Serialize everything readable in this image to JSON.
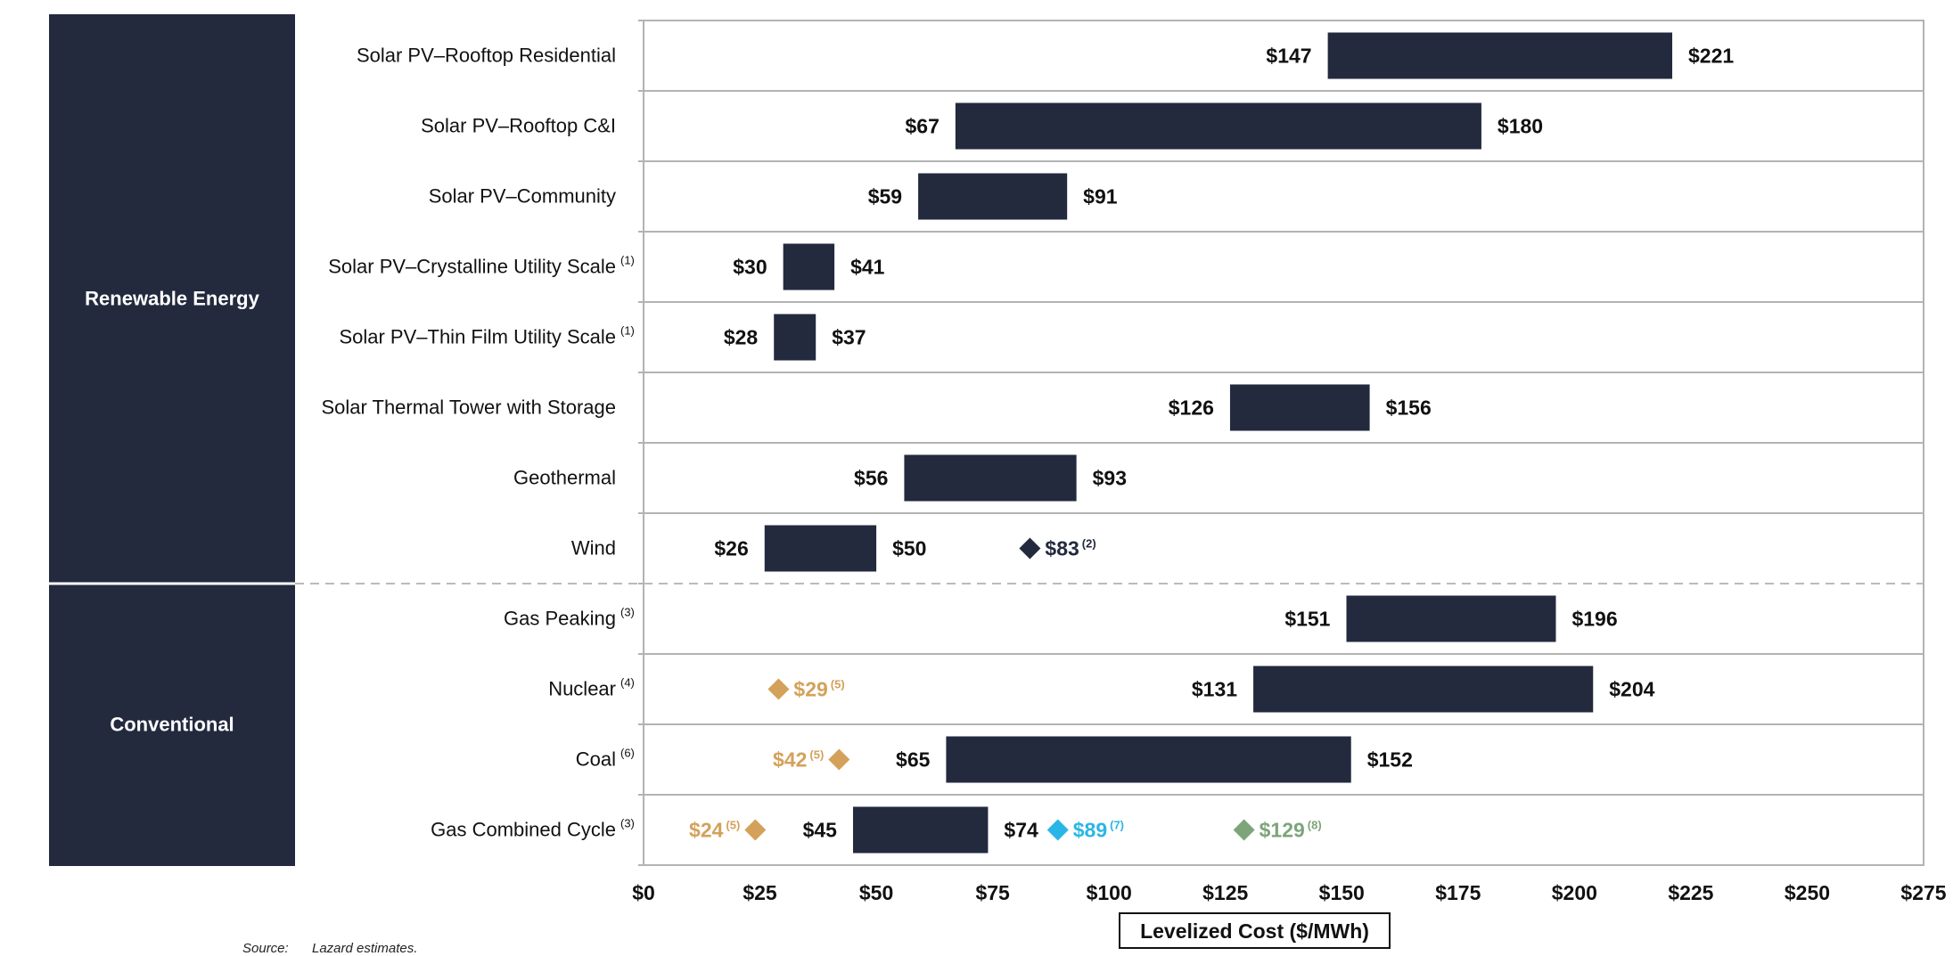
{
  "chart_data": {
    "type": "range-bar",
    "xlabel": "Levelized Cost ($/MWh)",
    "xlim": [
      0,
      275
    ],
    "x_ticks": [
      "$0",
      "$25",
      "$50",
      "$75",
      "$100",
      "$125",
      "$150",
      "$175",
      "$200",
      "$225",
      "$250",
      "$275"
    ],
    "groups": [
      {
        "name": "Renewable Energy",
        "first_row": 0,
        "last_row": 7
      },
      {
        "name": "Conventional",
        "first_row": 8,
        "last_row": 11
      }
    ],
    "rows": [
      {
        "label": "Solar PV–Rooftop Residential",
        "note": "",
        "low": 147,
        "high": 221,
        "low_label": "$147",
        "high_label": "$221",
        "markers": []
      },
      {
        "label": "Solar PV–Rooftop C&I",
        "note": "",
        "low": 67,
        "high": 180,
        "low_label": "$67",
        "high_label": "$180",
        "markers": []
      },
      {
        "label": "Solar PV–Community",
        "note": "",
        "low": 59,
        "high": 91,
        "low_label": "$59",
        "high_label": "$91",
        "markers": []
      },
      {
        "label": "Solar PV–Crystalline Utility Scale",
        "note": "(1)",
        "low": 30,
        "high": 41,
        "low_label": "$30",
        "high_label": "$41",
        "markers": []
      },
      {
        "label": "Solar PV–Thin Film Utility Scale",
        "note": "(1)",
        "low": 28,
        "high": 37,
        "low_label": "$28",
        "high_label": "$37",
        "markers": []
      },
      {
        "label": "Solar Thermal Tower with Storage",
        "note": "",
        "low": 126,
        "high": 156,
        "low_label": "$126",
        "high_label": "$156",
        "markers": []
      },
      {
        "label": "Geothermal",
        "note": "",
        "low": 56,
        "high": 93,
        "low_label": "$56",
        "high_label": "$93",
        "markers": []
      },
      {
        "label": "Wind",
        "note": "",
        "low": 26,
        "high": 50,
        "low_label": "$26",
        "high_label": "$50",
        "markers": [
          {
            "value": 83,
            "label": "$83",
            "note": "(2)",
            "color": "#232a3e",
            "side": "right"
          }
        ]
      },
      {
        "label": "Gas Peaking",
        "note": "(3)",
        "low": 151,
        "high": 196,
        "low_label": "$151",
        "high_label": "$196",
        "markers": []
      },
      {
        "label": "Nuclear",
        "note": "(4)",
        "low": 131,
        "high": 204,
        "low_label": "$131",
        "high_label": "$204",
        "markers": [
          {
            "value": 29,
            "label": "$29",
            "note": "(5)",
            "color": "#d4a15a",
            "side": "right"
          }
        ]
      },
      {
        "label": "Coal",
        "note": "(6)",
        "low": 65,
        "high": 152,
        "low_label": "$65",
        "high_label": "$152",
        "markers": [
          {
            "value": 42,
            "label": "$42",
            "note": "(5)",
            "color": "#d4a15a",
            "side": "left"
          }
        ]
      },
      {
        "label": "Gas Combined Cycle",
        "note": "(3)",
        "low": 45,
        "high": 74,
        "low_label": "$45",
        "high_label": "$74",
        "markers": [
          {
            "value": 24,
            "label": "$24",
            "note": "(5)",
            "color": "#d4a15a",
            "side": "left"
          },
          {
            "value": 89,
            "label": "$89",
            "note": "(7)",
            "color": "#29b6e6",
            "side": "right"
          },
          {
            "value": 129,
            "label": "$129",
            "note": "(8)",
            "color": "#7da57a",
            "side": "right"
          }
        ]
      }
    ],
    "bar_color": "#232a3e",
    "category_box_color": "#232a3e"
  },
  "footer": {
    "source_label": "Source:",
    "source_text": "Lazard estimates."
  }
}
